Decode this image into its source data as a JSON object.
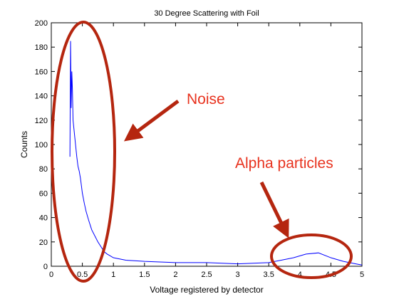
{
  "chart_data": {
    "type": "line",
    "title": "30 Degree Scattering with Foil",
    "xlabel": "Voltage registered by detector",
    "ylabel": "Counts",
    "xlim": [
      0,
      5
    ],
    "ylim": [
      0,
      200
    ],
    "xticks": [
      "0",
      "0.5",
      "1",
      "1.5",
      "2",
      "2.5",
      "3",
      "3.5",
      "4",
      "4.5",
      "5"
    ],
    "xtick_values": [
      0,
      0.5,
      1,
      1.5,
      2,
      2.5,
      3,
      3.5,
      4,
      4.5,
      5
    ],
    "yticks": [
      "0",
      "20",
      "40",
      "60",
      "80",
      "100",
      "120",
      "140",
      "160",
      "180",
      "200"
    ],
    "ytick_values": [
      0,
      20,
      40,
      60,
      80,
      100,
      120,
      140,
      160,
      180,
      200
    ],
    "grid": false,
    "series": [
      {
        "color": "#0000ff",
        "x": [
          0.3,
          0.31,
          0.32,
          0.33,
          0.34,
          0.35,
          0.37,
          0.39,
          0.41,
          0.43,
          0.45,
          0.47,
          0.5,
          0.53,
          0.56,
          0.6,
          0.65,
          0.7,
          0.75,
          0.8,
          0.85,
          0.9,
          1.0,
          1.1,
          1.2,
          1.5,
          2.0,
          2.5,
          3.0,
          3.5,
          3.7,
          3.9,
          4.1,
          4.3,
          4.5,
          4.7,
          4.9,
          5.0
        ],
        "y": [
          90,
          185,
          130,
          160,
          145,
          120,
          110,
          100,
          90,
          82,
          78,
          72,
          60,
          52,
          45,
          38,
          30,
          25,
          20,
          16,
          12,
          10,
          7,
          6,
          5,
          4,
          3,
          3,
          2,
          3,
          5,
          7,
          10,
          11,
          7,
          4,
          2,
          1
        ]
      }
    ],
    "annotations": [
      {
        "text": "Noise",
        "color": "#e8321e"
      },
      {
        "text": "Alpha particles",
        "color": "#e8321e"
      }
    ],
    "highlight_color": "#b5260f"
  }
}
